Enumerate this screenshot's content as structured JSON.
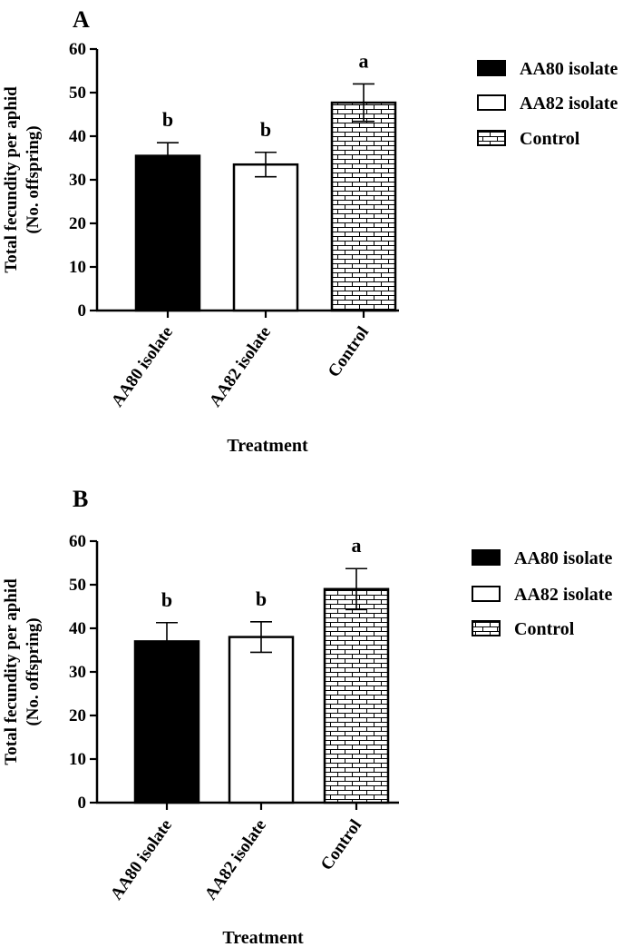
{
  "chart_data": [
    {
      "panel": "A",
      "type": "bar",
      "categories": [
        "AA80 isolate",
        "AA82 isolate",
        "Control"
      ],
      "values": [
        35.5,
        33.5,
        47.7
      ],
      "errors": [
        3.0,
        2.8,
        4.3
      ],
      "significance": [
        "b",
        "b",
        "a"
      ],
      "fills": [
        "solid",
        "empty",
        "brick"
      ],
      "xlabel": "Treatment",
      "ylabel_line1": "Total fecundity per aphid",
      "ylabel_line2": "(No. offspring)",
      "ylim": [
        0,
        60
      ],
      "yticks": [
        "0",
        "10",
        "20",
        "30",
        "40",
        "50",
        "60"
      ],
      "legend": [
        "AA80 isolate",
        "AA82 isolate",
        "Control"
      ],
      "legend_position": "right"
    },
    {
      "panel": "B",
      "type": "bar",
      "categories": [
        "AA80 isolate",
        "AA82 isolate",
        "Control"
      ],
      "values": [
        37.0,
        38.0,
        49.0
      ],
      "errors": [
        4.3,
        3.5,
        4.7
      ],
      "significance": [
        "b",
        "b",
        "a"
      ],
      "fills": [
        "solid",
        "empty",
        "brick"
      ],
      "xlabel": "Treatment",
      "ylabel_line1": "Total fecundity per aphid",
      "ylabel_line2": "(No. offspring)",
      "ylim": [
        0,
        60
      ],
      "yticks": [
        "0",
        "10",
        "20",
        "30",
        "40",
        "50",
        "60"
      ],
      "legend": [
        "AA80 isolate",
        "AA82 isolate",
        "Control"
      ],
      "legend_position": "right"
    }
  ]
}
